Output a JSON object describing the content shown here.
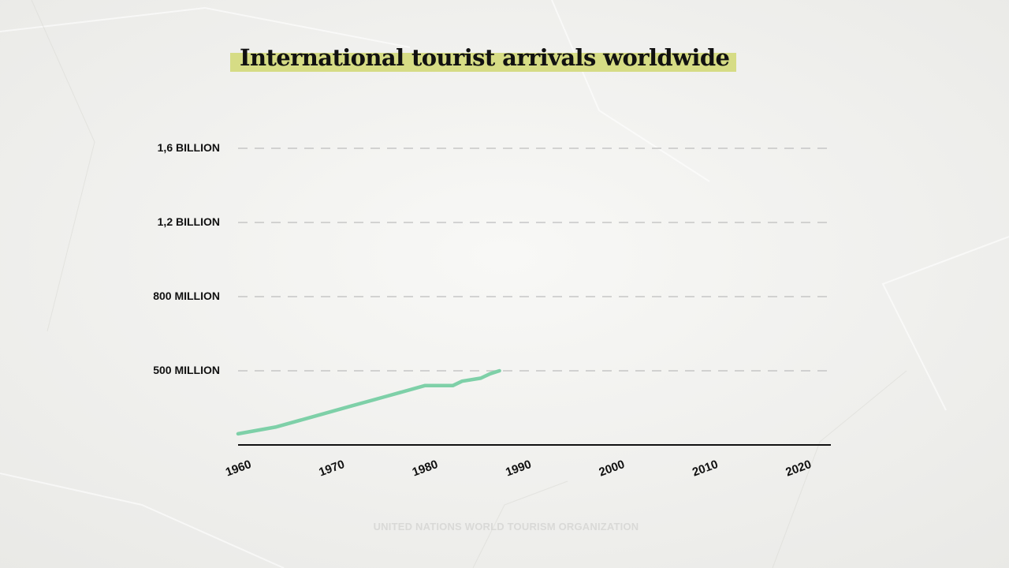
{
  "colors": {
    "background": "#f3f3f1",
    "title_highlight": "#d6dc85",
    "line": "#7ed0a8",
    "grid": "#c6c6c6",
    "axis": "#111111",
    "text": "#111111",
    "source_text": "#d9d9d7"
  },
  "chart_data": {
    "type": "line",
    "title": "International tourist arrivals worldwide",
    "xlabel": "",
    "ylabel": "",
    "x_ticks": [
      1960,
      1970,
      1980,
      1990,
      2000,
      2010,
      2020
    ],
    "y_ticks": [
      {
        "value": 500000000,
        "label": "500 MILLION"
      },
      {
        "value": 800000000,
        "label": "800 MILLION"
      },
      {
        "value": 1200000000,
        "label": "1,2 BILLION"
      },
      {
        "value": 1600000000,
        "label": "1,6 BILLION"
      }
    ],
    "xlim": [
      1960,
      2023.5
    ],
    "grid": "horizontal-dashed",
    "source": "UNITED NATIONS WORLD TOURISM ORGANIZATION",
    "series": [
      {
        "x": [
          1960,
          1964,
          1968,
          1972,
          1976,
          1980,
          1983,
          1984,
          1986,
          1987,
          1988
        ],
        "values": [
          75000000,
          120000000,
          190000000,
          260000000,
          330000000,
          400000000,
          400000000,
          430000000,
          450000000,
          480000000,
          500000000
        ]
      }
    ]
  }
}
